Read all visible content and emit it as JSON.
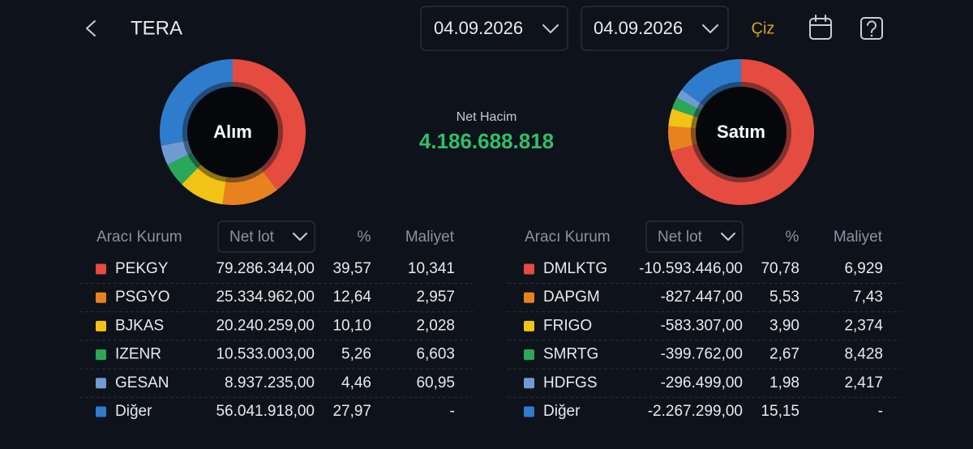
{
  "header": {
    "title": "TERA",
    "date_from": "04.09.2026",
    "date_to": "04.09.2026",
    "draw_button": "Çiz"
  },
  "net_volume": {
    "label": "Net Hacim",
    "value": "4.186.688.818"
  },
  "buy": {
    "title": "Alım",
    "columns": {
      "broker": "Aracı Kurum",
      "net_lot": "Net lot",
      "percent": "%",
      "cost": "Maliyet"
    },
    "rows": [
      {
        "name": "PEKGY",
        "color": "#e54b3f",
        "net_lot": "79.286.344,00",
        "percent": {
          "value": 39.57,
          "label": "39,57"
        },
        "cost": "10,341"
      },
      {
        "name": "PSGYO",
        "color": "#e8821f",
        "net_lot": "25.334.962,00",
        "percent": {
          "value": 12.64,
          "label": "12,64"
        },
        "cost": "2,957"
      },
      {
        "name": "BJKAS",
        "color": "#f2c315",
        "net_lot": "20.240.259,00",
        "percent": {
          "value": 10.1,
          "label": "10,10"
        },
        "cost": "2,028"
      },
      {
        "name": "IZENR",
        "color": "#2aa85a",
        "net_lot": "10.533.003,00",
        "percent": {
          "value": 5.26,
          "label": "5,26"
        },
        "cost": "6,603"
      },
      {
        "name": "GESAN",
        "color": "#6f9bd3",
        "net_lot": "8.937.235,00",
        "percent": {
          "value": 4.46,
          "label": "4,46"
        },
        "cost": "60,95"
      },
      {
        "name": "Diğer",
        "color": "#2f7ccc",
        "net_lot": "56.041.918,00",
        "percent": {
          "value": 27.97,
          "label": "27,97"
        },
        "cost": "-"
      }
    ]
  },
  "sell": {
    "title": "Satım",
    "columns": {
      "broker": "Aracı Kurum",
      "net_lot": "Net lot",
      "percent": "%",
      "cost": "Maliyet"
    },
    "rows": [
      {
        "name": "DMLKTG",
        "color": "#e54b3f",
        "net_lot": "-10.593.446,00",
        "percent": {
          "value": 70.78,
          "label": "70,78"
        },
        "cost": "6,929"
      },
      {
        "name": "DAPGM",
        "color": "#e8821f",
        "net_lot": "-827.447,00",
        "percent": {
          "value": 5.53,
          "label": "5,53"
        },
        "cost": "7,43"
      },
      {
        "name": "FRIGO",
        "color": "#f2c315",
        "net_lot": "-583.307,00",
        "percent": {
          "value": 3.9,
          "label": "3,90"
        },
        "cost": "2,374"
      },
      {
        "name": "SMRTG",
        "color": "#2aa85a",
        "net_lot": "-399.762,00",
        "percent": {
          "value": 2.67,
          "label": "2,67"
        },
        "cost": "8,428"
      },
      {
        "name": "HDFGS",
        "color": "#6f9bd3",
        "net_lot": "-296.499,00",
        "percent": {
          "value": 1.98,
          "label": "1,98"
        },
        "cost": "2,417"
      },
      {
        "name": "Diğer",
        "color": "#2f7ccc",
        "net_lot": "-2.267.299,00",
        "percent": {
          "value": 15.15,
          "label": "15,15"
        },
        "cost": "-"
      }
    ]
  }
}
